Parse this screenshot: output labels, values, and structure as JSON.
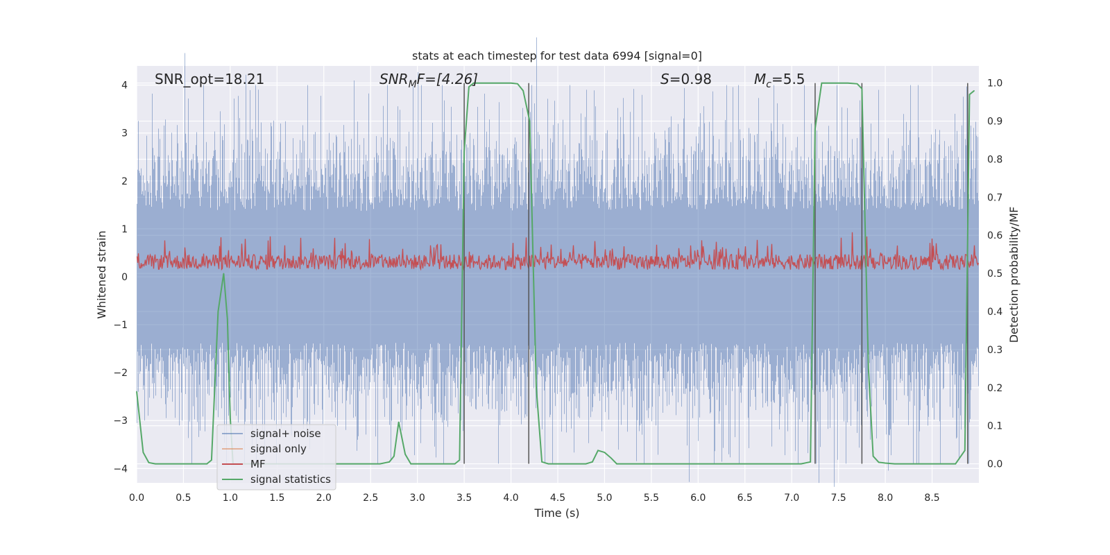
{
  "chart_data": {
    "type": "line",
    "title": "stats at each timestep for test data 6994 [signal=0]",
    "xlabel": "Time (s)",
    "ylabel_left": "Whitened strain",
    "ylabel_right": "Detection probability/MF",
    "xlim": [
      0,
      9
    ],
    "ylim_left": [
      -4.3,
      4.4
    ],
    "ylim_right": [
      -0.05,
      1.045
    ],
    "x_ticks": [
      "0.0",
      "0.5",
      "1.0",
      "1.5",
      "2.0",
      "2.5",
      "3.0",
      "3.5",
      "4.0",
      "4.5",
      "5.0",
      "5.5",
      "6.0",
      "6.5",
      "7.0",
      "7.5",
      "8.0",
      "8.5"
    ],
    "x_tick_values": [
      0.0,
      0.5,
      1.0,
      1.5,
      2.0,
      2.5,
      3.0,
      3.5,
      4.0,
      4.5,
      5.0,
      5.5,
      6.0,
      6.5,
      7.0,
      7.5,
      8.0,
      8.5
    ],
    "y_left_ticks": [
      "4",
      "3",
      "2",
      "1",
      "0",
      "−1",
      "−2",
      "−3",
      "−4"
    ],
    "y_left_tick_values": [
      4,
      3,
      2,
      1,
      0,
      -1,
      -2,
      -3,
      -4
    ],
    "y_right_ticks": [
      "1.0",
      "0.9",
      "0.8",
      "0.7",
      "0.6",
      "0.5",
      "0.4",
      "0.3",
      "0.2",
      "0.1",
      "0.0"
    ],
    "y_right_tick_values": [
      1.0,
      0.9,
      0.8,
      0.7,
      0.6,
      0.5,
      0.4,
      0.3,
      0.2,
      0.1,
      0.0
    ],
    "annotations": {
      "snr_opt": "SNR_opt=18.21",
      "snr_mf_base": "SNR",
      "snr_mf_sub": "M",
      "snr_mf_rest": "F=[4.26]",
      "s_var": "S",
      "s_rest": "=0.98",
      "mc_base": "M",
      "mc_sub": "c",
      "mc_rest": "=5.5"
    },
    "legend": {
      "location": "lower-left",
      "entries": [
        {
          "label": "signal+ noise",
          "color": "#4c72b0"
        },
        {
          "label": "signal only",
          "color": "#dd8452"
        },
        {
          "label": "MF",
          "color": "#c44e52"
        },
        {
          "label": "signal statistics",
          "color": "#55a868"
        }
      ]
    },
    "series": [
      {
        "name": "signal+ noise",
        "color": "#4c72b0",
        "description": "dense whitened strain noise, roughly symmetric about zero",
        "envelope_upper": 2.5,
        "envelope_lower": -2.5,
        "peak_max": 4.0,
        "peak_min": -3.9
      },
      {
        "name": "MF",
        "color": "#c44e52",
        "axis": "right",
        "baseline": 0.53,
        "range": [
          0.5,
          0.61
        ]
      },
      {
        "name": "signal statistics",
        "color": "#55a868",
        "axis": "right",
        "x": [
          0.0,
          0.07,
          0.13,
          0.2,
          0.3,
          0.4,
          0.5,
          0.6,
          0.7,
          0.75,
          0.8,
          0.87,
          0.93,
          0.97,
          1.0,
          1.03,
          1.07,
          1.13,
          1.2,
          1.4,
          1.6,
          1.8,
          2.0,
          2.2,
          2.4,
          2.6,
          2.7,
          2.75,
          2.8,
          2.87,
          2.93,
          3.0,
          3.1,
          3.2,
          3.3,
          3.4,
          3.45,
          3.5,
          3.55,
          3.6,
          3.7,
          3.8,
          3.9,
          4.0,
          4.07,
          4.13,
          4.2,
          4.27,
          4.33,
          4.4,
          4.5,
          4.6,
          4.7,
          4.8,
          4.87,
          4.93,
          5.0,
          5.07,
          5.13,
          5.2,
          5.3,
          5.5,
          5.7,
          5.9,
          6.1,
          6.3,
          6.5,
          6.7,
          6.9,
          7.1,
          7.2,
          7.25,
          7.32,
          7.4,
          7.5,
          7.6,
          7.7,
          7.75,
          7.82,
          7.87,
          7.93,
          8.0,
          8.1,
          8.2,
          8.4,
          8.6,
          8.75,
          8.85,
          8.9,
          8.95
        ],
        "y": [
          0.19,
          0.03,
          0.003,
          0.0,
          0.0,
          0.0,
          0.0,
          0.0,
          0.0,
          0.0,
          0.01,
          0.4,
          0.5,
          0.38,
          0.12,
          0.0,
          0.0,
          0.0,
          0.0,
          0.0,
          0.0,
          0.0,
          0.0,
          0.0,
          0.0,
          0.0,
          0.005,
          0.02,
          0.11,
          0.025,
          0.0,
          0.0,
          0.0,
          0.0,
          0.0,
          0.0,
          0.01,
          0.82,
          0.99,
          1.0,
          1.0,
          1.0,
          1.0,
          1.0,
          0.998,
          0.98,
          0.9,
          0.2,
          0.005,
          0.0,
          0.0,
          0.0,
          0.0,
          0.0,
          0.005,
          0.035,
          0.03,
          0.015,
          0.0,
          0.0,
          0.0,
          0.0,
          0.0,
          0.0,
          0.0,
          0.0,
          0.0,
          0.0,
          0.0,
          0.0,
          0.005,
          0.88,
          1.0,
          1.0,
          1.0,
          1.0,
          0.998,
          0.985,
          0.25,
          0.02,
          0.004,
          0.002,
          0.0,
          0.0,
          0.0,
          0.0,
          0.0,
          0.035,
          0.97,
          0.98
        ]
      }
    ],
    "vertical_lines": [
      3.5,
      4.19,
      7.25,
      7.75,
      8.88
    ]
  }
}
